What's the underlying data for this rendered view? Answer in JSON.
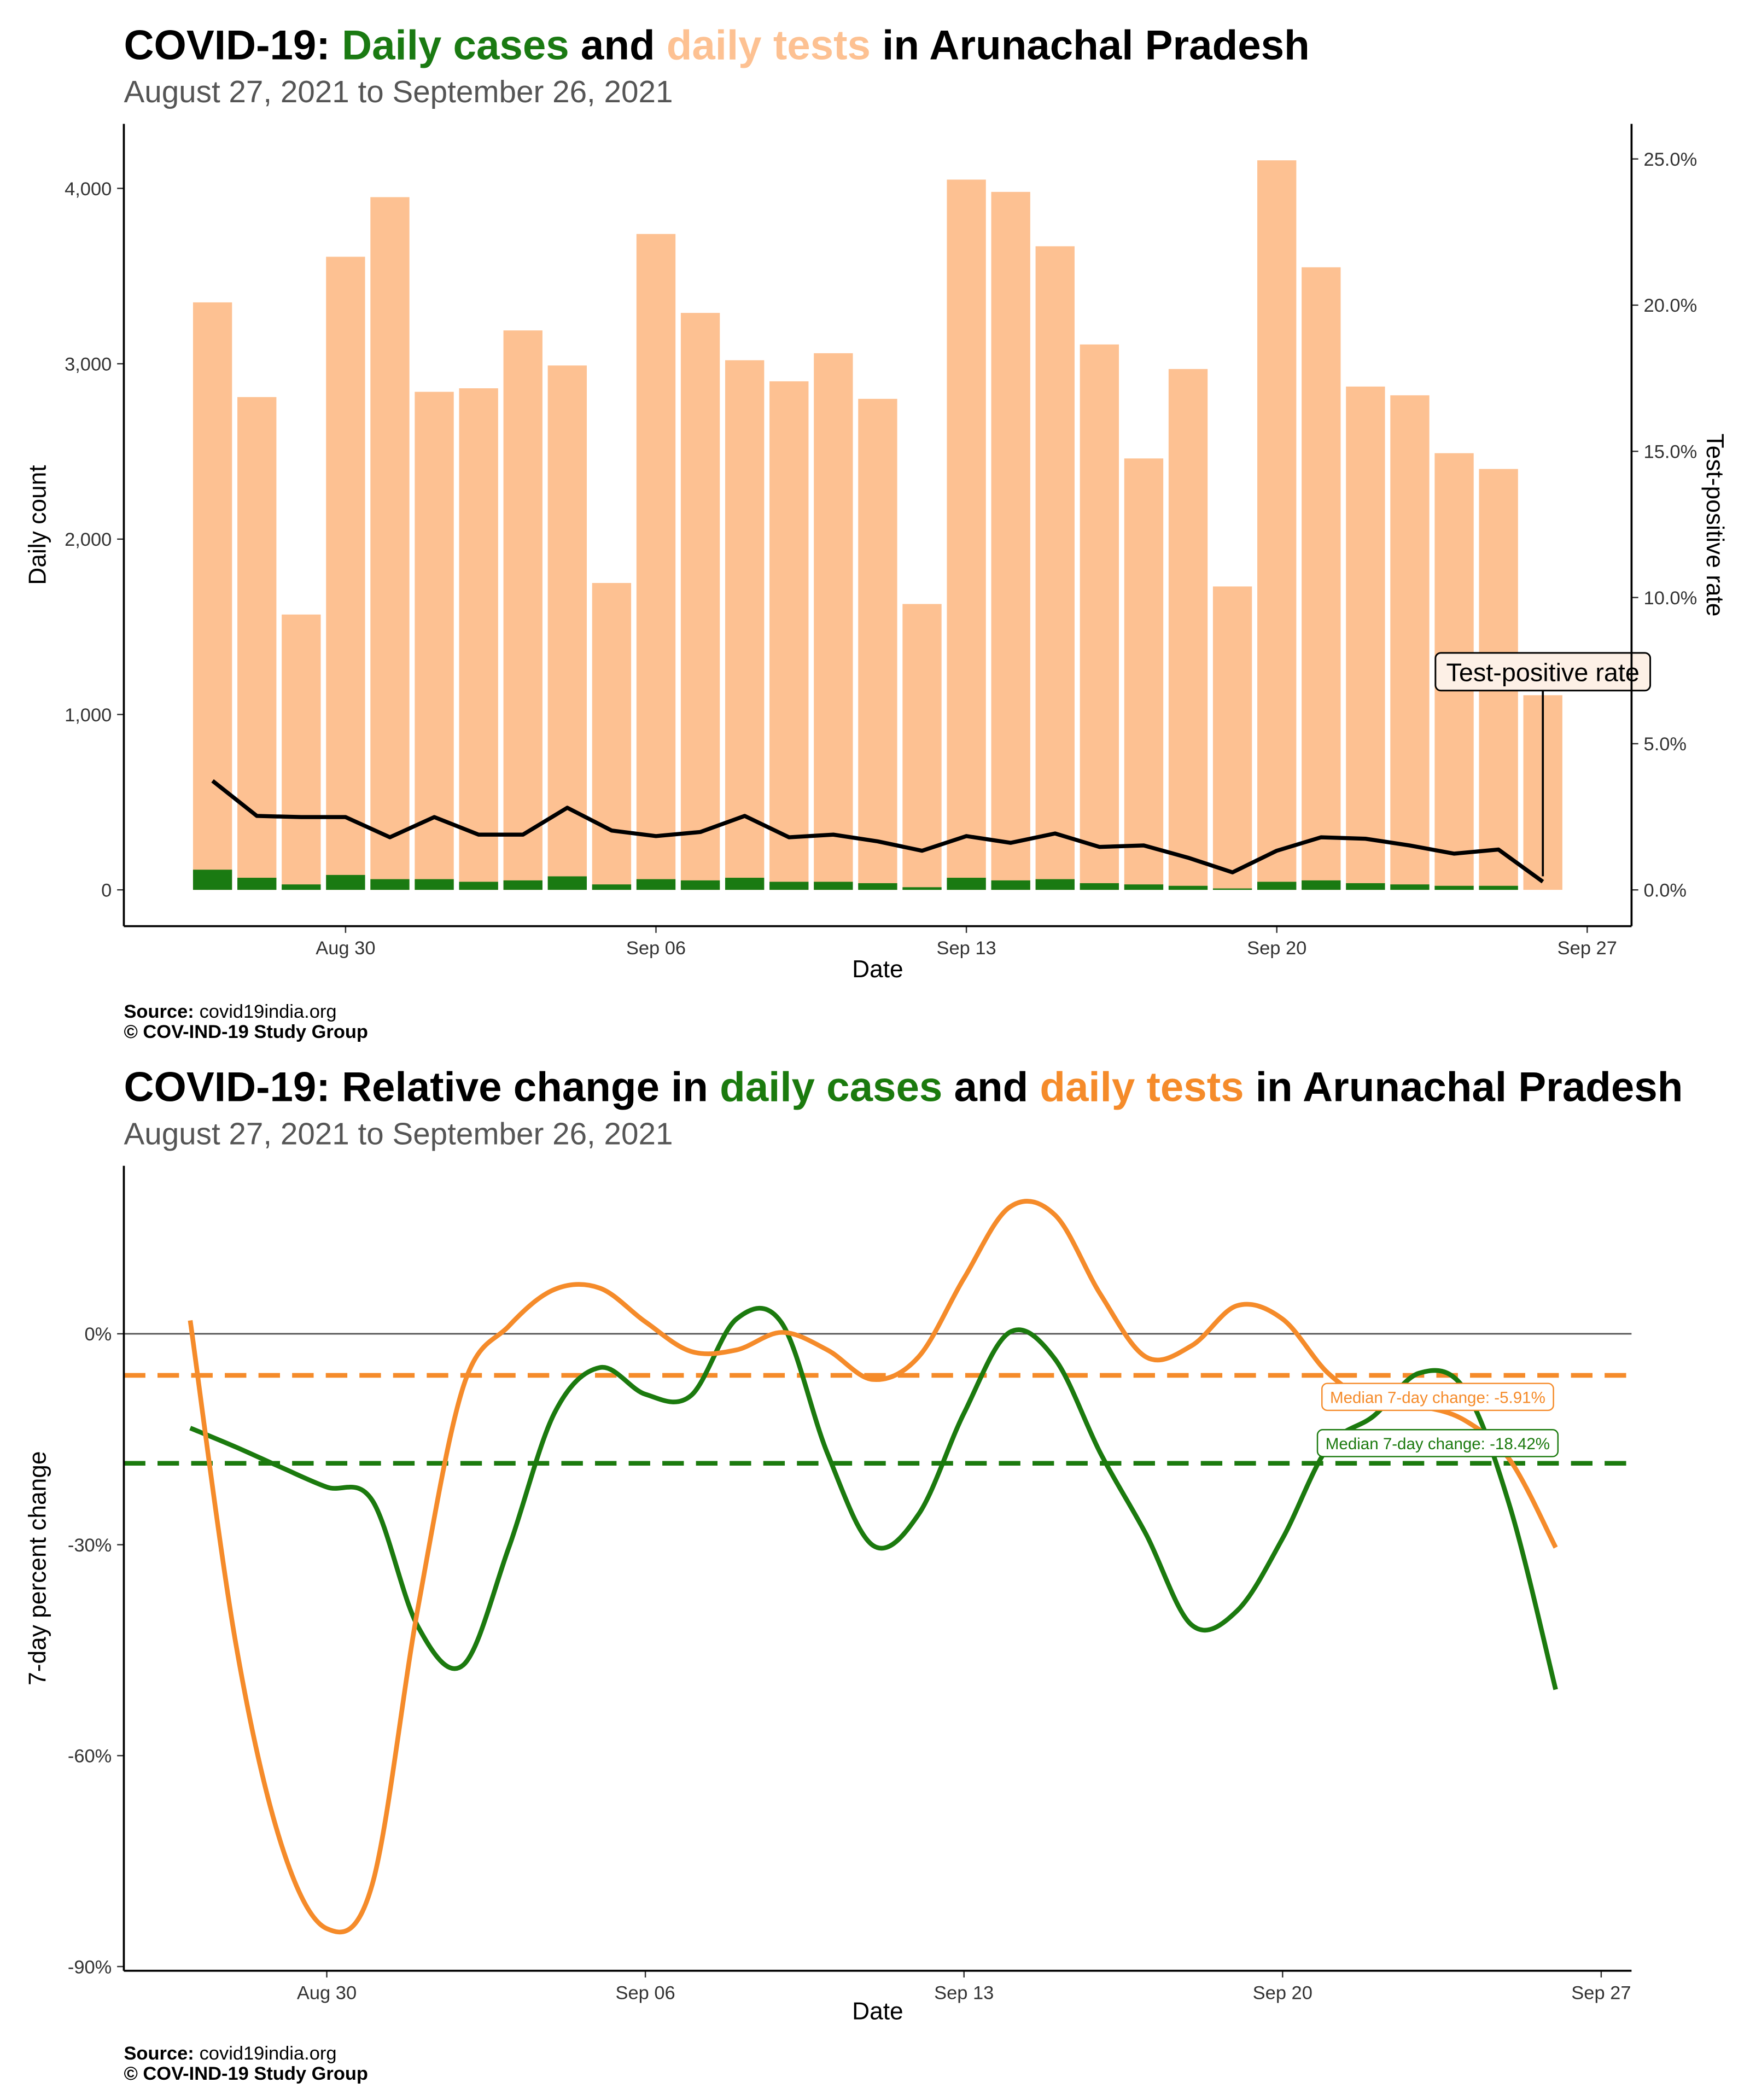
{
  "chart_data": [
    {
      "type": "bar",
      "title_prefix": "COVID-19: ",
      "title_joiner": " and ",
      "title_suffix": " in Arunachal Pradesh",
      "subtitle": "August 27, 2021 to September 26, 2021",
      "xlabel": "Date",
      "ylabel": "Daily count",
      "y2label": "Test-positive rate",
      "source_label": "Source:",
      "source": "covid19india.org",
      "credit": "© COV-IND-19 Study Group",
      "x": [
        "2021-08-27",
        "2021-08-28",
        "2021-08-29",
        "2021-08-30",
        "2021-08-31",
        "2021-09-01",
        "2021-09-02",
        "2021-09-03",
        "2021-09-04",
        "2021-09-05",
        "2021-09-06",
        "2021-09-07",
        "2021-09-08",
        "2021-09-09",
        "2021-09-10",
        "2021-09-11",
        "2021-09-12",
        "2021-09-13",
        "2021-09-14",
        "2021-09-15",
        "2021-09-16",
        "2021-09-17",
        "2021-09-18",
        "2021-09-19",
        "2021-09-20",
        "2021-09-21",
        "2021-09-22",
        "2021-09-23",
        "2021-09-24",
        "2021-09-25",
        "2021-09-26"
      ],
      "xlim": [
        "2021-08-25",
        "2021-09-28"
      ],
      "xticks": [
        {
          "value": "2021-08-30",
          "label": "Aug 30"
        },
        {
          "value": "2021-09-06",
          "label": "Sep 06"
        },
        {
          "value": "2021-09-13",
          "label": "Sep 13"
        },
        {
          "value": "2021-09-20",
          "label": "Sep 20"
        },
        {
          "value": "2021-09-27",
          "label": "Sep 27"
        }
      ],
      "ylim": [
        -207,
        4368
      ],
      "yticks": [
        0,
        {
          "value": 1000,
          "label": "1,000"
        },
        {
          "value": 2000,
          "label": "2,000"
        },
        {
          "value": 3000,
          "label": "3,000"
        },
        {
          "value": 4000,
          "label": "4,000"
        }
      ],
      "y2lim": [
        -1.24,
        26.2
      ],
      "y2ticks": [
        {
          "value": 0,
          "label": "0.0%"
        },
        {
          "value": 5,
          "label": "5.0%"
        },
        {
          "value": 10,
          "label": "10.0%"
        },
        {
          "value": 15,
          "label": "15.0%"
        },
        {
          "value": 20,
          "label": "20.0%"
        },
        {
          "value": 25,
          "label": "25.0%"
        }
      ],
      "series": [
        {
          "name": "Daily cases",
          "color": "#1a7a12",
          "values": [
            115,
            69,
            31,
            85,
            61,
            61,
            46,
            54,
            77,
            31,
            61,
            54,
            69,
            46,
            46,
            38,
            15,
            69,
            54,
            61,
            38,
            31,
            23,
            8,
            46,
            54,
            38,
            31,
            23,
            23,
            0
          ]
        },
        {
          "name": "daily tests",
          "color": "#fdc192",
          "values": [
            3350,
            2810,
            1570,
            3610,
            3950,
            2840,
            2860,
            3190,
            2990,
            1750,
            3740,
            3290,
            3020,
            2900,
            3060,
            2800,
            1630,
            4050,
            3980,
            3670,
            3110,
            2460,
            2970,
            1730,
            4160,
            3550,
            2870,
            2820,
            2490,
            2400,
            1110
          ]
        },
        {
          "name": "Test-positive rate",
          "color": "#000000",
          "type": "line",
          "axis": "y2",
          "values": [
            3.73,
            2.53,
            2.49,
            2.49,
            1.8,
            2.49,
            1.89,
            1.89,
            2.81,
            2.03,
            1.84,
            1.98,
            2.53,
            1.8,
            1.89,
            1.66,
            1.34,
            1.84,
            1.61,
            1.93,
            1.47,
            1.52,
            1.1,
            0.6,
            1.34,
            1.8,
            1.75,
            1.52,
            1.24,
            1.38,
            0.28
          ]
        }
      ]
    },
    {
      "type": "line",
      "title_prefix": "COVID-19: Relative change in ",
      "title_joiner": " and ",
      "title_suffix": " in Arunachal Pradesh",
      "subtitle": "August 27, 2021 to September 26, 2021",
      "xlabel": "Date",
      "ylabel": "7-day percent change",
      "source_label": "Source:",
      "source": "covid19india.org",
      "credit": "© COV-IND-19 Study Group",
      "x": [
        "2021-08-27",
        "2021-08-28",
        "2021-08-29",
        "2021-08-30",
        "2021-08-31",
        "2021-09-01",
        "2021-09-02",
        "2021-09-03",
        "2021-09-04",
        "2021-09-05",
        "2021-09-06",
        "2021-09-07",
        "2021-09-08",
        "2021-09-09",
        "2021-09-10",
        "2021-09-11",
        "2021-09-12",
        "2021-09-13",
        "2021-09-14",
        "2021-09-15",
        "2021-09-16",
        "2021-09-17",
        "2021-09-18",
        "2021-09-19",
        "2021-09-20",
        "2021-09-21",
        "2021-09-22",
        "2021-09-23",
        "2021-09-24",
        "2021-09-25",
        "2021-09-26"
      ],
      "xlim": [
        "2021-08-25T13:00",
        "2021-09-27T16:00"
      ],
      "xticks": [
        {
          "value": "2021-08-30",
          "label": "Aug 30"
        },
        {
          "value": "2021-09-06",
          "label": "Sep 06"
        },
        {
          "value": "2021-09-13",
          "label": "Sep 13"
        },
        {
          "value": "2021-09-20",
          "label": "Sep 20"
        },
        {
          "value": "2021-09-27",
          "label": "Sep 27"
        }
      ],
      "ylim": [
        -90.6,
        23.9
      ],
      "yticks": [
        {
          "value": 0,
          "label": "0%"
        },
        {
          "value": -30,
          "label": "-30%"
        },
        {
          "value": -60,
          "label": "-60%"
        },
        {
          "value": -90,
          "label": "-90%"
        }
      ],
      "series": [
        {
          "name": "daily cases",
          "color": "#1b7a0e",
          "median": -18.42,
          "median_label": "Median 7-day change: -18.42%",
          "values": [
            -13.4,
            -16.1,
            -19.0,
            -21.8,
            -23.7,
            -41.6,
            -47.1,
            -30.4,
            -11.3,
            -4.8,
            -8.6,
            -8.8,
            2.1,
            1.5,
            -17.0,
            -30.1,
            -25.7,
            -11.3,
            0.2,
            -3.6,
            -17.0,
            -28.5,
            -41.4,
            -39.4,
            -29.1,
            -16.1,
            -11.7,
            -5.6,
            -7.9,
            -24.7,
            -50.6
          ]
        },
        {
          "name": "daily tests",
          "color": "#f58b2a",
          "median": -5.91,
          "median_label": "Median 7-day change: -5.91%",
          "values": [
            1.9,
            -44.0,
            -72.6,
            -84.6,
            -78.3,
            -39.1,
            -7.5,
            1.1,
            6.3,
            6.5,
            1.7,
            -2.5,
            -2.3,
            0.2,
            -2.3,
            -6.5,
            -3.3,
            7.9,
            18.0,
            16.9,
            5.6,
            -3.3,
            -1.7,
            4.0,
            2.1,
            -5.6,
            -9.8,
            -10.3,
            -12.3,
            -18.0,
            -30.4
          ]
        }
      ]
    }
  ]
}
